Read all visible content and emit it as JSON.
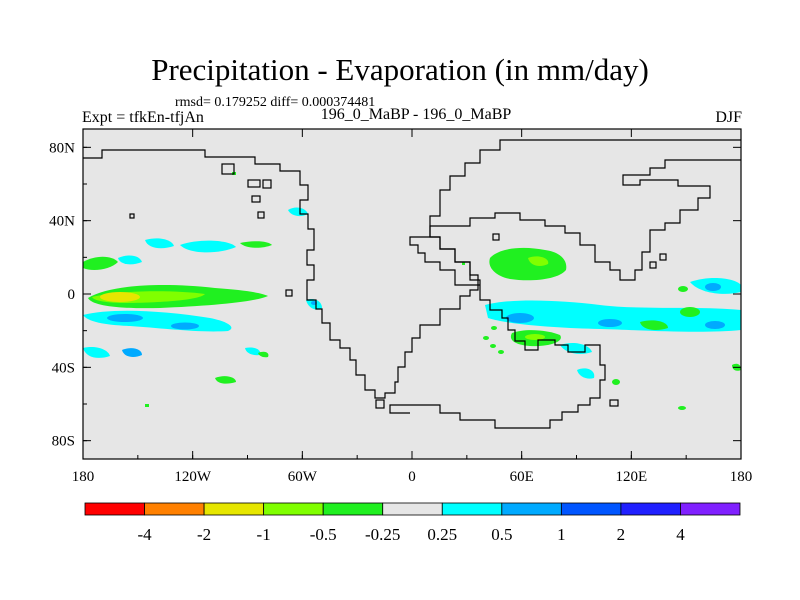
{
  "header": {
    "title": "Precipitation - Evaporation (in mm/day)",
    "stats": "rmsd= 0.179252 diff= 0.000374481",
    "left_label": "Expt = tfkEn-tfjAn",
    "center_label": "196_0_MaBP - 196_0_MaBP",
    "right_label": "DJF"
  },
  "map": {
    "background_color": "#e6e6e6",
    "lon_labels": [
      "180",
      "120W",
      "60W",
      "0",
      "60E",
      "120E",
      "180"
    ],
    "lat_labels": [
      "80N",
      "40N",
      "0",
      "40S",
      "80S"
    ],
    "lon_range": [
      -180,
      180
    ],
    "lat_range": [
      -90,
      90
    ]
  },
  "colorbar": {
    "colors": [
      "#ff0000",
      "#ff8000",
      "#e6e600",
      "#80ff00",
      "#20f020",
      "#e6e6e6",
      "#00ffff",
      "#00aaff",
      "#0055ff",
      "#2020ff",
      "#8020ff"
    ],
    "labels": [
      "-4",
      "-2",
      "-1",
      "-0.5",
      "-0.25",
      "0.25",
      "0.5",
      "1",
      "2",
      "4"
    ]
  },
  "icons": {
    "continent_outline": "coastline",
    "contour_fill": "filled-contours"
  }
}
